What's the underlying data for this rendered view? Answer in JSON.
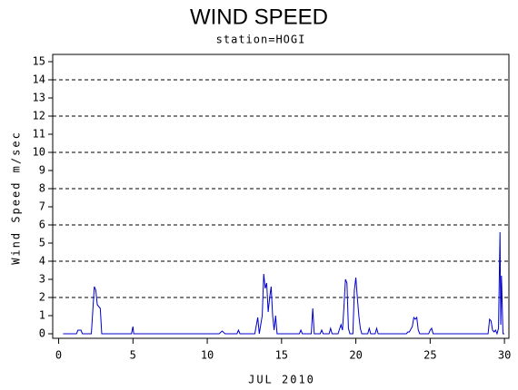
{
  "chart_data": {
    "type": "line",
    "title": "WIND SPEED",
    "subtitle": "station=HOGI",
    "x_label": "JUL 2010",
    "y_label": "Wind Speed m/sec",
    "color": "#0000cc",
    "x": [
      0.3,
      1.2,
      1.3,
      1.5,
      1.6,
      2.2,
      2.4,
      2.5,
      2.6,
      2.8,
      2.9,
      4.9,
      5.0,
      5.05,
      10.8,
      11.0,
      11.2,
      12.0,
      12.1,
      12.2,
      13.2,
      13.4,
      13.5,
      13.7,
      13.8,
      13.9,
      14.0,
      14.1,
      14.2,
      14.3,
      14.4,
      14.5,
      14.6,
      14.7,
      16.2,
      16.3,
      16.4,
      17.0,
      17.1,
      17.2,
      17.6,
      17.7,
      17.8,
      18.2,
      18.3,
      18.4,
      18.8,
      19.0,
      19.1,
      19.2,
      19.3,
      19.4,
      19.5,
      19.6,
      19.8,
      19.9,
      20.0,
      20.1,
      20.2,
      20.3,
      20.4,
      20.8,
      20.9,
      21.0,
      21.3,
      21.4,
      21.5,
      23.4,
      23.5,
      23.6,
      23.8,
      23.9,
      24.0,
      24.1,
      24.2,
      24.3,
      24.9,
      25.0,
      25.1,
      25.2,
      28.9,
      29.0,
      29.1,
      29.2,
      29.3,
      29.4,
      29.5,
      29.6,
      29.7,
      29.75,
      29.8,
      29.9,
      30.0
    ],
    "values": [
      0,
      0,
      0.2,
      0.2,
      0,
      0,
      2.6,
      2.4,
      1.6,
      1.4,
      0,
      0,
      0.4,
      0,
      0,
      0.15,
      0,
      0,
      0.2,
      0,
      0,
      0.9,
      0,
      1,
      3.3,
      2.5,
      2.8,
      1.2,
      2.0,
      2.6,
      1.0,
      0.2,
      1.0,
      0,
      0,
      0.2,
      0,
      0,
      1.4,
      0,
      0,
      0.2,
      0,
      0,
      0.3,
      0,
      0,
      0.5,
      0.2,
      1.5,
      3.0,
      2.8,
      0.3,
      0,
      0,
      2.4,
      3.1,
      2.0,
      1.0,
      0.3,
      0,
      0,
      0.3,
      0,
      0,
      0.3,
      0,
      0,
      0.1,
      0.1,
      0.4,
      0.9,
      0.8,
      0.9,
      0.2,
      0,
      0,
      0.2,
      0.3,
      0,
      0,
      0.8,
      0.7,
      0.2,
      0.1,
      0.2,
      0,
      0.3,
      5.6,
      0.5,
      3.2,
      0,
      0
    ],
    "xlim": [
      -0.4,
      30.3
    ],
    "ylim": [
      -0.25,
      15.4
    ],
    "xticks": [
      0,
      5,
      10,
      15,
      20,
      25,
      30
    ],
    "yticks": [
      0,
      1,
      2,
      3,
      4,
      5,
      6,
      7,
      8,
      9,
      10,
      11,
      12,
      13,
      14,
      15
    ],
    "ygrid": [
      2,
      4,
      6,
      8,
      10,
      12,
      14
    ]
  }
}
